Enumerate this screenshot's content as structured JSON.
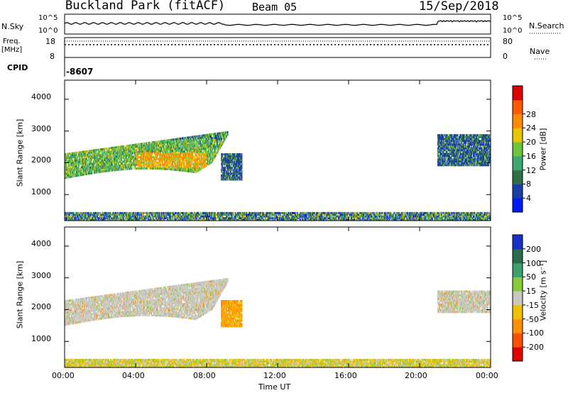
{
  "header": {
    "title": "Buckland Park (fitACF)",
    "beam": "Beam 05",
    "date": "15/Sep/2018"
  },
  "strip": {
    "nsky_label": "N.Sky",
    "nsky_ticks": [
      "10^5",
      "10^0"
    ],
    "nsearch_label": "N.Search",
    "freq_label_1": "Freq.",
    "freq_label_2": "[MHz]",
    "freq_ticks": [
      "18",
      "8"
    ],
    "nave_label": "Nave",
    "nave_ticks": [
      "80",
      "0"
    ],
    "cpid_label": "CPID",
    "cpid_value": "-8607"
  },
  "axes": {
    "x_ticks": [
      "00:00",
      "04:00",
      "08:00",
      "12:00",
      "16:00",
      "20:00",
      "00:00"
    ],
    "xlabel": "Time UT",
    "ylabel": "Slant Range [km]",
    "y_ticks": [
      "1000",
      "2000",
      "3000",
      "4000"
    ]
  },
  "power_bar": {
    "label": "Power [dB]",
    "ticks": [
      "4",
      "8",
      "12",
      "16",
      "20",
      "24",
      "28"
    ],
    "colors": [
      "#0018ff",
      "#1c3ea8",
      "#2f6f44",
      "#3ea66f",
      "#6cc53a",
      "#e8c300",
      "#ff8c00",
      "#ff5a00",
      "#e00000"
    ]
  },
  "velocity_bar": {
    "label": "Velocity [m s⁻¹]",
    "ticks": [
      "200",
      "100",
      "50",
      "15",
      "-15",
      "-50",
      "-100",
      "-200"
    ],
    "colors": [
      "#1830c8",
      "#2c6a4c",
      "#3aa06c",
      "#86cc3c",
      "#c8c8c0",
      "#f0c000",
      "#ff9000",
      "#ff5000",
      "#e00000"
    ]
  },
  "chart_data": [
    {
      "type": "heatmap",
      "panel": "power",
      "xlabel": "Time UT",
      "ylabel": "Slant Range [km]",
      "xlim": [
        "00:00",
        "24:00"
      ],
      "ylim": [
        180,
        4600
      ],
      "colorbar": "Power [dB]",
      "clim": [
        0,
        30
      ],
      "regions": [
        {
          "t_start": 0.0,
          "t_end": 9.2,
          "range_low": 1500,
          "range_high": 3100,
          "power_db": "4-22"
        },
        {
          "t_start": 8.8,
          "t_end": 10.0,
          "range_low": 1450,
          "range_high": 2300,
          "power_db": "4-8"
        },
        {
          "t_start": 21.0,
          "t_end": 24.0,
          "range_low": 1900,
          "range_high": 2900,
          "power_db": "4-14"
        },
        {
          "t_start": 0.0,
          "t_end": 24.0,
          "range_low": 180,
          "range_high": 450,
          "power_db": "4-16"
        }
      ]
    },
    {
      "type": "heatmap",
      "panel": "velocity",
      "xlabel": "Time UT",
      "ylabel": "Slant Range [km]",
      "xlim": [
        "00:00",
        "24:00"
      ],
      "ylim": [
        180,
        4600
      ],
      "colorbar": "Velocity [m s⁻¹]",
      "clim": [
        -200,
        200
      ],
      "regions": [
        {
          "t_start": 0.0,
          "t_end": 9.2,
          "range_low": 1500,
          "range_high": 3100,
          "velocity": "-15 to 15"
        },
        {
          "t_start": 8.8,
          "t_end": 10.0,
          "range_low": 1450,
          "range_high": 2300,
          "velocity": "-50 to -15"
        },
        {
          "t_start": 21.0,
          "t_end": 24.0,
          "range_low": 1900,
          "range_high": 2600,
          "velocity": "-15 to 15"
        },
        {
          "t_start": 0.0,
          "t_end": 24.0,
          "range_low": 180,
          "range_high": 450,
          "velocity": "-50 to 50"
        }
      ]
    }
  ]
}
